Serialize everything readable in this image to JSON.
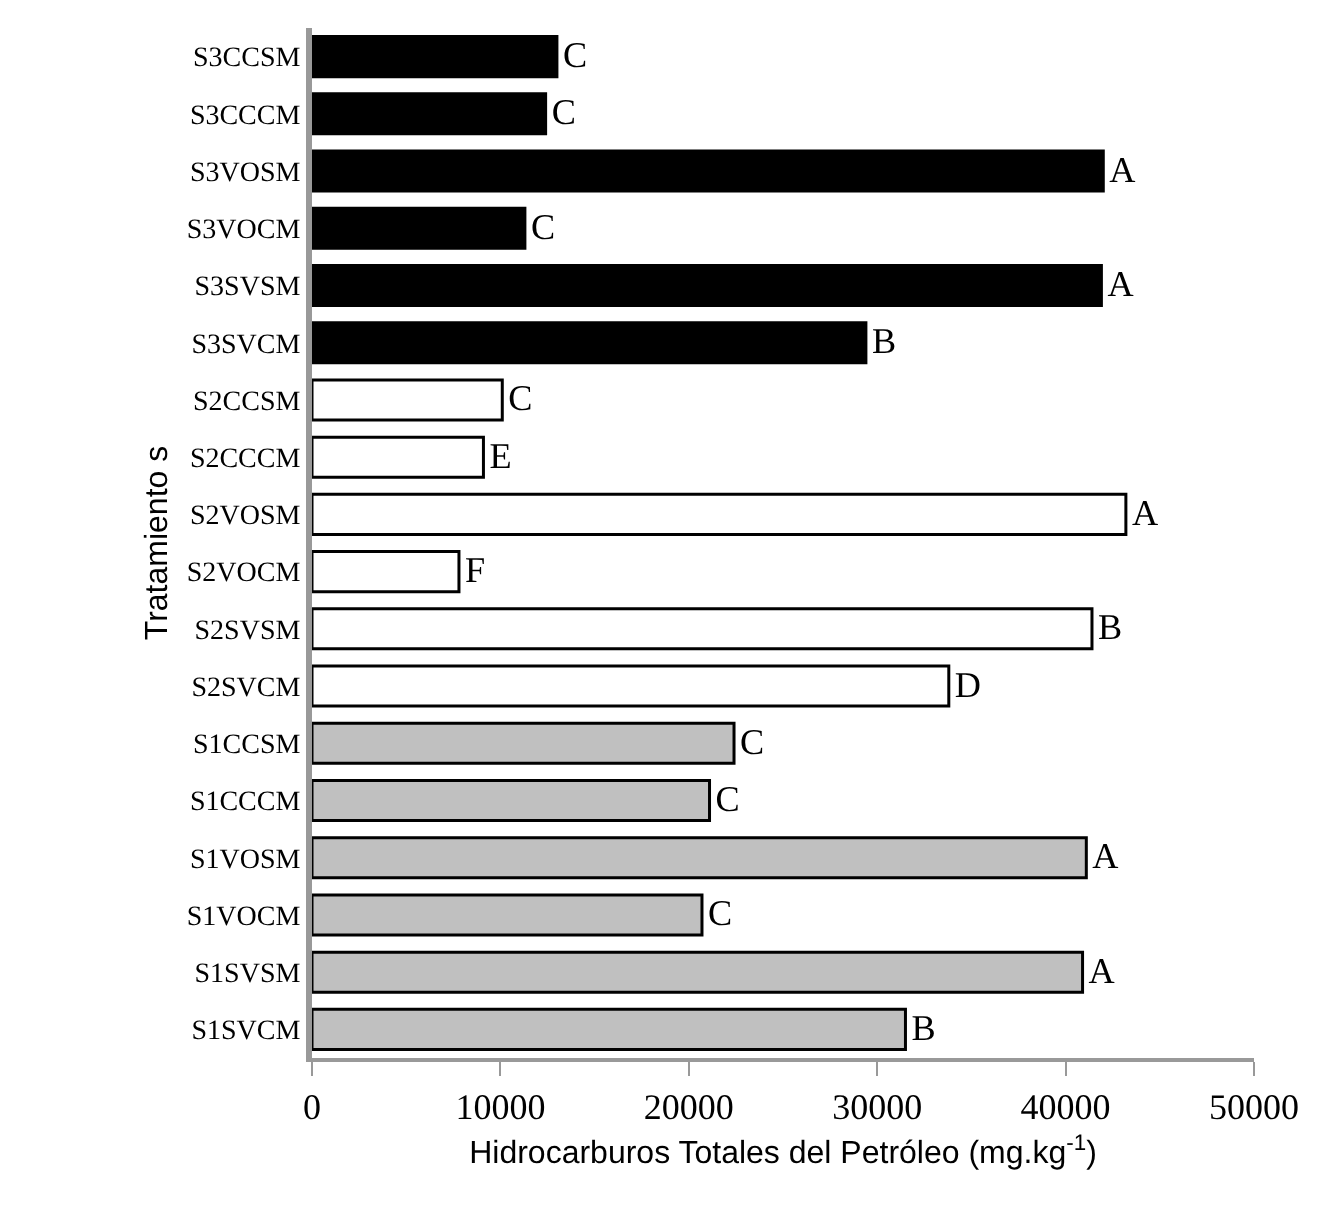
{
  "chart_data": {
    "type": "bar",
    "orientation": "horizontal",
    "xlabel": "Hidrocarburos Totales del Petróleo (mg.kg$^{-1}$)",
    "ylabel": "Tratamiento s",
    "categories": [
      "S3CCSM",
      "S3CCCM",
      "S3VOSM",
      "S3VOCM",
      "S3SVSM",
      "S3SVCM",
      "S2CCSM",
      "S2CCCM",
      "S2VOSM",
      "S2VOCM",
      "S2SVSM",
      "S2SVCM",
      "S1CCSM",
      "S1CCCM",
      "S1VOSM",
      "S1VOCM",
      "S1SVSM",
      "S1SVCM"
    ],
    "values": [
      13000,
      12400,
      42000,
      11300,
      41900,
      29400,
      10100,
      9100,
      43200,
      7800,
      41400,
      33800,
      22400,
      21100,
      41100,
      20700,
      40900,
      31500
    ],
    "colors": [
      "#000000",
      "#000000",
      "#000000",
      "#000000",
      "#000000",
      "#000000",
      "#ffffff",
      "#ffffff",
      "#ffffff",
      "#ffffff",
      "#ffffff",
      "#ffffff",
      "#c0c0c0",
      "#c0c0c0",
      "#c0c0c0",
      "#c0c0c0",
      "#c0c0c0",
      "#c0c0c0"
    ],
    "value_labels": [
      "C",
      "C",
      "A",
      "C",
      "A",
      "B",
      "C",
      "E",
      "A",
      "F",
      "B",
      "D",
      "C",
      "C",
      "A",
      "C",
      "A",
      "B"
    ],
    "xlim": [
      0,
      50000
    ],
    "xticks": [
      0,
      10000,
      20000,
      30000,
      40000,
      50000
    ]
  }
}
